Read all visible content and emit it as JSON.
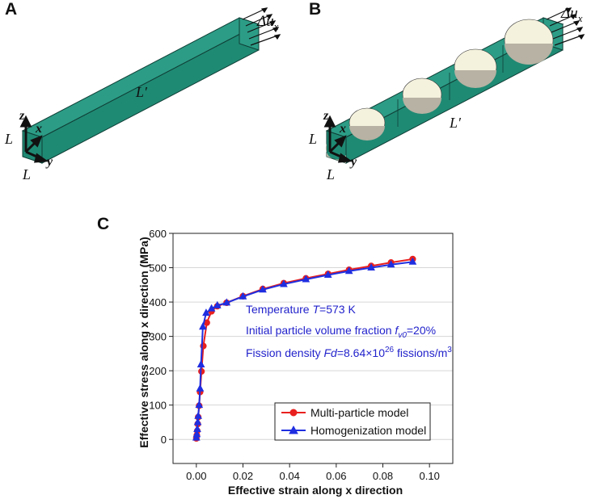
{
  "panels": {
    "a": {
      "letter": "A",
      "labels": {
        "disp": "Δu",
        "disp_sub": "x",
        "z": "z",
        "x": "x",
        "y": "y",
        "L_vertical": "L",
        "L_bottom": "L",
        "L_prime": "L′"
      }
    },
    "b": {
      "letter": "B",
      "labels": {
        "disp": "Δu",
        "disp_sub": "x",
        "z": "z",
        "x": "x",
        "y": "y",
        "L_vertical": "L",
        "L_bottom": "L",
        "L_prime": "L′"
      }
    },
    "c": {
      "letter": "C"
    }
  },
  "colors": {
    "beam_top": "#2c9c86",
    "beam_side": "#1f8a74",
    "beam_edge": "#0f3f36",
    "particle": "#f4f1dd",
    "particle_shadow": "#b7b2a3",
    "red_series": "#e8201f",
    "blue_series": "#1f2ee0",
    "annotation": "#2222cc",
    "grid": "#d6d6d6"
  },
  "annotation": {
    "line1_prefix": "Temperature ",
    "line1_var": "T",
    "line1_suffix": "=573 K",
    "line2_prefix": "Initial particle volume fraction ",
    "line2_var": "f",
    "line2_sub": "v0",
    "line2_suffix": "=20%",
    "line3_prefix": "Fission density ",
    "line3_var": "Fd",
    "line3_mid": "=8.64×10",
    "line3_sup": "26",
    "line3_suffix": " fissions/m",
    "line3_sup2": "3"
  },
  "chart_data": {
    "type": "line",
    "xlabel": "Effective strain along x direction",
    "ylabel": "Effective stress along x direction (MPa)",
    "xlim": [
      -0.01,
      0.11
    ],
    "ylim": [
      -70,
      600
    ],
    "xticks": [
      0.0,
      0.02,
      0.04,
      0.06,
      0.08,
      0.1
    ],
    "xtick_labels": [
      "0.00",
      "0.02",
      "0.04",
      "0.06",
      "0.08",
      "0.10"
    ],
    "yticks": [
      0,
      100,
      200,
      300,
      400,
      500,
      600
    ],
    "ytick_labels": [
      "0",
      "100",
      "200",
      "300",
      "400",
      "500",
      "600"
    ],
    "grid": "horizontal",
    "legend_position": "bottom-right",
    "series": [
      {
        "name": "Multi-particle model",
        "marker": "circle",
        "color": "#e8201f",
        "x": [
          0.0,
          0.0002,
          0.0004,
          0.0006,
          0.0008,
          0.0012,
          0.0016,
          0.0022,
          0.003,
          0.0045,
          0.0065,
          0.009,
          0.013,
          0.02,
          0.0285,
          0.0375,
          0.047,
          0.0565,
          0.0655,
          0.075,
          0.0835,
          0.0928
        ],
        "y": [
          3,
          12,
          25,
          45,
          65,
          98,
          138,
          198,
          272,
          340,
          373,
          388,
          398,
          417,
          438,
          455,
          469,
          482,
          494,
          505,
          515,
          525
        ]
      },
      {
        "name": "Homogenization model",
        "marker": "triangle",
        "color": "#1f2ee0",
        "x": [
          0.0,
          0.0002,
          0.0004,
          0.0006,
          0.0008,
          0.0012,
          0.0016,
          0.002,
          0.0028,
          0.0042,
          0.0065,
          0.009,
          0.013,
          0.02,
          0.0285,
          0.0375,
          0.047,
          0.0565,
          0.0655,
          0.075,
          0.0835,
          0.0928
        ],
        "y": [
          5,
          15,
          30,
          50,
          68,
          100,
          148,
          218,
          328,
          368,
          381,
          390,
          398,
          416,
          436,
          452,
          466,
          479,
          490,
          500,
          509,
          517
        ]
      }
    ]
  }
}
